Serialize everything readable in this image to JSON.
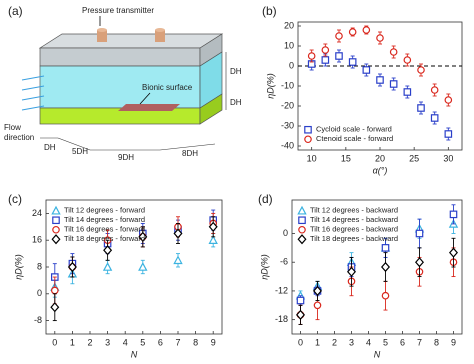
{
  "diagram": {
    "panel_label": "(a)",
    "pressure_label": "Pressure transmitter",
    "bionic_label": "Bionic surface",
    "flow_label": [
      "Flow",
      "direction"
    ],
    "dims": [
      "DH",
      "DH",
      "DH",
      "5DH",
      "9DH",
      "8DH"
    ]
  },
  "chart_data": [
    {
      "type": "scatter",
      "panel_label": "(b)",
      "xlabel": "α(°)",
      "ylabel": "ηD(%)",
      "xlim": [
        8,
        32
      ],
      "xticks": [
        10,
        15,
        20,
        25,
        30
      ],
      "ylim": [
        -42,
        22
      ],
      "yticks": [
        -40,
        -30,
        -20,
        -10,
        0,
        10,
        20
      ],
      "hline": 0,
      "legend": "lower left",
      "x": [
        10,
        12,
        14,
        16,
        18,
        20,
        22,
        24,
        26,
        28,
        30
      ],
      "series": [
        {
          "name": "Cycloid scale - forward",
          "color": "#2a3fc9",
          "marker": "square",
          "values": [
            1,
            3,
            5,
            2,
            -2,
            -7,
            -9,
            -13,
            -21,
            -26,
            -34
          ],
          "errors": [
            3,
            3,
            3,
            3,
            3,
            3,
            3,
            3,
            3,
            3,
            3
          ]
        },
        {
          "name": "Ctenoid scale - forward",
          "color": "#d9261c",
          "marker": "circle",
          "values": [
            5,
            8,
            15,
            17,
            18,
            14,
            7,
            3,
            -2,
            -12,
            -17
          ],
          "errors": [
            3,
            3,
            3,
            2,
            2,
            3,
            3,
            3,
            3,
            3,
            3
          ]
        }
      ]
    },
    {
      "type": "scatter",
      "panel_label": "(c)",
      "xlabel": "N",
      "ylabel": "ηD(%)",
      "xlim": [
        -0.5,
        9.5
      ],
      "xticks": [
        0,
        1,
        2,
        3,
        4,
        5,
        6,
        7,
        8,
        9
      ],
      "ylim": [
        -12,
        28
      ],
      "yticks": [
        -8,
        0,
        8,
        16,
        24
      ],
      "legend": "upper left",
      "x": [
        0,
        1,
        3,
        5,
        7,
        9
      ],
      "series": [
        {
          "name": "Tilt 12 degrees - forward",
          "color": "#3bb3e0",
          "marker": "triangle",
          "values": [
            2,
            6,
            8,
            8,
            10,
            16
          ],
          "errors": [
            3,
            3,
            2,
            2,
            2,
            2
          ]
        },
        {
          "name": "Tilt 14 degrees - forward",
          "color": "#2a3fc9",
          "marker": "square",
          "values": [
            5,
            9,
            15,
            18,
            19,
            22
          ],
          "errors": [
            4,
            3,
            3,
            3,
            3,
            3
          ]
        },
        {
          "name": "Tilt 16 degrees - forward",
          "color": "#d9261c",
          "marker": "circle",
          "values": [
            1,
            8,
            16,
            17,
            20,
            21
          ],
          "errors": [
            4,
            3,
            3,
            3,
            3,
            3
          ]
        },
        {
          "name": "Tilt 18 degrees - forward",
          "color": "#000000",
          "marker": "diamond",
          "values": [
            -4,
            8,
            13,
            17,
            18,
            20
          ],
          "errors": [
            4,
            3,
            3,
            3,
            3,
            3
          ]
        }
      ]
    },
    {
      "type": "scatter",
      "panel_label": "(d)",
      "xlabel": "N",
      "ylabel": "ηD(%)",
      "xlim": [
        -0.5,
        9.5
      ],
      "xticks": [
        0,
        1,
        2,
        3,
        4,
        5,
        6,
        7,
        8,
        9
      ],
      "ylim": [
        -21,
        7
      ],
      "yticks": [
        -18,
        -12,
        -6,
        0
      ],
      "legend": "upper left",
      "x": [
        0,
        1,
        3,
        5,
        7,
        9
      ],
      "series": [
        {
          "name": "Tilt 12 degrees - backward",
          "color": "#3bb3e0",
          "marker": "triangle",
          "values": [
            -13,
            -11,
            -6,
            -3,
            1,
            2
          ],
          "errors": [
            1,
            1,
            2,
            2,
            2,
            2
          ]
        },
        {
          "name": "Tilt 14 degrees - backward",
          "color": "#2a3fc9",
          "marker": "square",
          "values": [
            -14,
            -12,
            -7,
            -3,
            0,
            4
          ],
          "errors": [
            1,
            1,
            2,
            2,
            3,
            2
          ]
        },
        {
          "name": "Tilt 16 degrees - backward",
          "color": "#d9261c",
          "marker": "circle",
          "values": [
            -17,
            -15,
            -10,
            -13,
            -8,
            -6
          ],
          "errors": [
            2,
            3,
            3,
            3,
            3,
            3
          ]
        },
        {
          "name": "Tilt 18 degrees - backward",
          "color": "#000000",
          "marker": "diamond",
          "values": [
            -17,
            -12,
            -8,
            -7,
            -6,
            -4
          ],
          "errors": [
            2,
            2,
            3,
            3,
            3,
            3
          ]
        }
      ]
    }
  ]
}
